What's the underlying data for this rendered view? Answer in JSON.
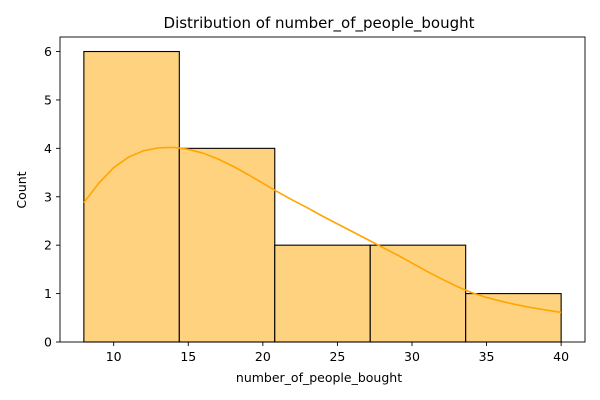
{
  "chart_data": {
    "type": "histogram",
    "title": "Distribution of number_of_people_bought",
    "xlabel": "number_of_people_bought",
    "ylabel": "Count",
    "xlim": [
      6.4,
      41.6
    ],
    "ylim": [
      0,
      6.3
    ],
    "xticks": [
      10,
      15,
      20,
      25,
      30,
      35,
      40
    ],
    "yticks": [
      0,
      1,
      2,
      3,
      4,
      5,
      6
    ],
    "bins": [
      {
        "start": 8.0,
        "end": 14.4,
        "count": 6
      },
      {
        "start": 14.4,
        "end": 20.8,
        "count": 4
      },
      {
        "start": 20.8,
        "end": 27.2,
        "count": 2
      },
      {
        "start": 27.2,
        "end": 33.6,
        "count": 2
      },
      {
        "start": 33.6,
        "end": 40.0,
        "count": 1
      }
    ],
    "kde": {
      "x": [
        8,
        9,
        10,
        11,
        12,
        13,
        14,
        15,
        16,
        17,
        18,
        19,
        20,
        21,
        22,
        23,
        24,
        25,
        26,
        27,
        28,
        29,
        30,
        31,
        32,
        33,
        34,
        35,
        36,
        37,
        38,
        39,
        40
      ],
      "y": [
        2.88,
        3.28,
        3.6,
        3.82,
        3.95,
        4.01,
        4.02,
        3.98,
        3.9,
        3.78,
        3.63,
        3.46,
        3.28,
        3.1,
        2.93,
        2.77,
        2.6,
        2.44,
        2.28,
        2.12,
        1.96,
        1.8,
        1.63,
        1.46,
        1.3,
        1.15,
        1.02,
        0.92,
        0.84,
        0.77,
        0.71,
        0.66,
        0.61
      ]
    },
    "grid": false,
    "legend": false,
    "colors": {
      "bar_fill": "#ffd280",
      "bar_edge": "#000000",
      "kde_line": "#ffa500"
    }
  }
}
